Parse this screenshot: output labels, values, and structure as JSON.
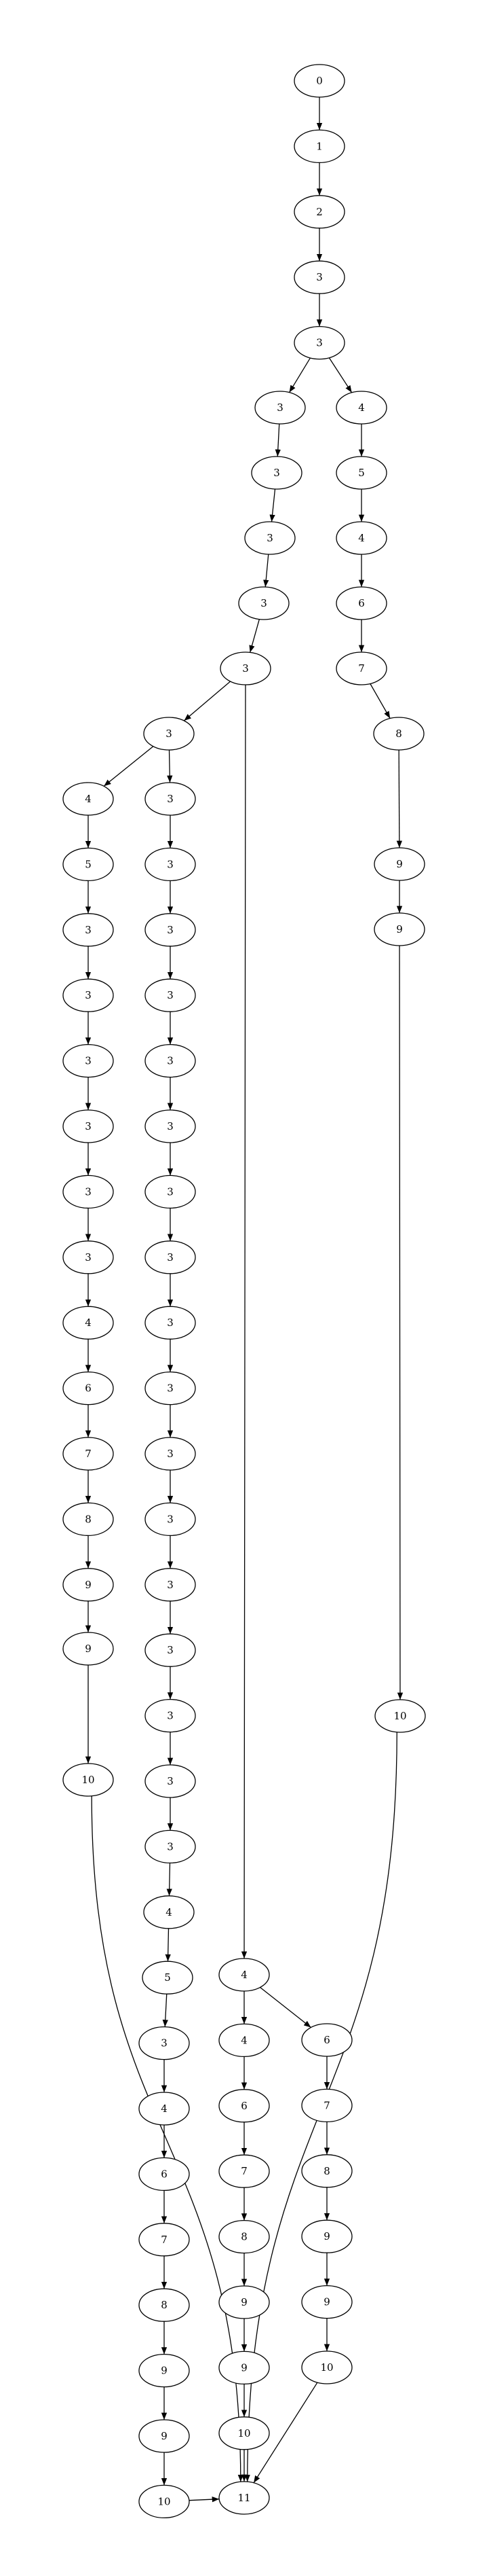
{
  "graph": {
    "nodes": [
      {
        "id": "n0",
        "label": "0"
      },
      {
        "id": "n1",
        "label": "1"
      },
      {
        "id": "n2",
        "label": "2"
      },
      {
        "id": "n3",
        "label": "3"
      },
      {
        "id": "n4",
        "label": "3"
      },
      {
        "id": "a1",
        "label": "3"
      },
      {
        "id": "a2",
        "label": "3"
      },
      {
        "id": "a3",
        "label": "3"
      },
      {
        "id": "a4",
        "label": "3"
      },
      {
        "id": "a5",
        "label": "3"
      },
      {
        "id": "b0",
        "label": "3"
      },
      {
        "id": "L1",
        "label": "4"
      },
      {
        "id": "L2",
        "label": "5"
      },
      {
        "id": "L3",
        "label": "3"
      },
      {
        "id": "L4",
        "label": "3"
      },
      {
        "id": "L5",
        "label": "3"
      },
      {
        "id": "L6",
        "label": "3"
      },
      {
        "id": "L7",
        "label": "3"
      },
      {
        "id": "L8",
        "label": "3"
      },
      {
        "id": "L9",
        "label": "4"
      },
      {
        "id": "L10",
        "label": "6"
      },
      {
        "id": "L11",
        "label": "7"
      },
      {
        "id": "L12",
        "label": "8"
      },
      {
        "id": "L13",
        "label": "9"
      },
      {
        "id": "L14",
        "label": "9"
      },
      {
        "id": "L15",
        "label": "10"
      },
      {
        "id": "M1",
        "label": "3"
      },
      {
        "id": "M2",
        "label": "3"
      },
      {
        "id": "M3",
        "label": "3"
      },
      {
        "id": "M4",
        "label": "3"
      },
      {
        "id": "M5",
        "label": "3"
      },
      {
        "id": "M6",
        "label": "3"
      },
      {
        "id": "M7",
        "label": "3"
      },
      {
        "id": "M8",
        "label": "3"
      },
      {
        "id": "M9",
        "label": "3"
      },
      {
        "id": "M10",
        "label": "3"
      },
      {
        "id": "M11",
        "label": "3"
      },
      {
        "id": "M12",
        "label": "3"
      },
      {
        "id": "M13",
        "label": "3"
      },
      {
        "id": "M14",
        "label": "3"
      },
      {
        "id": "M15",
        "label": "3"
      },
      {
        "id": "M16",
        "label": "3"
      },
      {
        "id": "M17",
        "label": "3"
      },
      {
        "id": "M18",
        "label": "4"
      },
      {
        "id": "M19",
        "label": "5"
      },
      {
        "id": "M20",
        "label": "3"
      },
      {
        "id": "M21",
        "label": "4"
      },
      {
        "id": "M22",
        "label": "6"
      },
      {
        "id": "M23",
        "label": "7"
      },
      {
        "id": "M24",
        "label": "8"
      },
      {
        "id": "M25",
        "label": "9"
      },
      {
        "id": "M26",
        "label": "9"
      },
      {
        "id": "M27",
        "label": "10"
      },
      {
        "id": "C0",
        "label": "4"
      },
      {
        "id": "C1",
        "label": "4"
      },
      {
        "id": "C2",
        "label": "6"
      },
      {
        "id": "C3",
        "label": "7"
      },
      {
        "id": "C4",
        "label": "8"
      },
      {
        "id": "C5",
        "label": "9"
      },
      {
        "id": "C6",
        "label": "9"
      },
      {
        "id": "C7",
        "label": "10"
      },
      {
        "id": "D1",
        "label": "6"
      },
      {
        "id": "D2",
        "label": "7"
      },
      {
        "id": "D3",
        "label": "8"
      },
      {
        "id": "D4",
        "label": "9"
      },
      {
        "id": "D5",
        "label": "9"
      },
      {
        "id": "D6",
        "label": "10"
      },
      {
        "id": "R1",
        "label": "4"
      },
      {
        "id": "R2",
        "label": "5"
      },
      {
        "id": "R3",
        "label": "4"
      },
      {
        "id": "R4",
        "label": "6"
      },
      {
        "id": "R5",
        "label": "7"
      },
      {
        "id": "R6",
        "label": "8"
      },
      {
        "id": "R7",
        "label": "9"
      },
      {
        "id": "R8",
        "label": "9"
      },
      {
        "id": "R9",
        "label": "10"
      },
      {
        "id": "end",
        "label": "11"
      }
    ],
    "edges": [
      [
        "n0",
        "n1"
      ],
      [
        "n1",
        "n2"
      ],
      [
        "n2",
        "n3"
      ],
      [
        "n3",
        "n4"
      ],
      [
        "n4",
        "a1"
      ],
      [
        "n4",
        "R1"
      ],
      [
        "a1",
        "a2"
      ],
      [
        "a2",
        "a3"
      ],
      [
        "a3",
        "a4"
      ],
      [
        "a4",
        "a5"
      ],
      [
        "a5",
        "b0"
      ],
      [
        "a5",
        "C0"
      ],
      [
        "b0",
        "L1"
      ],
      [
        "b0",
        "M1"
      ],
      [
        "L1",
        "L2"
      ],
      [
        "L2",
        "L3"
      ],
      [
        "L3",
        "L4"
      ],
      [
        "L4",
        "L5"
      ],
      [
        "L5",
        "L6"
      ],
      [
        "L6",
        "L7"
      ],
      [
        "L7",
        "L8"
      ],
      [
        "L8",
        "L9"
      ],
      [
        "L9",
        "L10"
      ],
      [
        "L10",
        "L11"
      ],
      [
        "L11",
        "L12"
      ],
      [
        "L12",
        "L13"
      ],
      [
        "L13",
        "L14"
      ],
      [
        "L14",
        "L15"
      ],
      [
        "L15",
        "end"
      ],
      [
        "M1",
        "M2"
      ],
      [
        "M2",
        "M3"
      ],
      [
        "M3",
        "M4"
      ],
      [
        "M4",
        "M5"
      ],
      [
        "M5",
        "M6"
      ],
      [
        "M6",
        "M7"
      ],
      [
        "M7",
        "M8"
      ],
      [
        "M8",
        "M9"
      ],
      [
        "M9",
        "M10"
      ],
      [
        "M10",
        "M11"
      ],
      [
        "M11",
        "M12"
      ],
      [
        "M12",
        "M13"
      ],
      [
        "M13",
        "M14"
      ],
      [
        "M14",
        "M15"
      ],
      [
        "M15",
        "M16"
      ],
      [
        "M16",
        "M17"
      ],
      [
        "M17",
        "M18"
      ],
      [
        "M18",
        "M19"
      ],
      [
        "M19",
        "M20"
      ],
      [
        "M20",
        "M21"
      ],
      [
        "M21",
        "M22"
      ],
      [
        "M22",
        "M23"
      ],
      [
        "M23",
        "M24"
      ],
      [
        "M24",
        "M25"
      ],
      [
        "M25",
        "M26"
      ],
      [
        "M26",
        "M27"
      ],
      [
        "M27",
        "end"
      ],
      [
        "C0",
        "C1"
      ],
      [
        "C0",
        "D1"
      ],
      [
        "C1",
        "C2"
      ],
      [
        "C2",
        "C3"
      ],
      [
        "C3",
        "C4"
      ],
      [
        "C4",
        "C5"
      ],
      [
        "C5",
        "C6"
      ],
      [
        "C6",
        "C7"
      ],
      [
        "C7",
        "end"
      ],
      [
        "D1",
        "D2"
      ],
      [
        "D2",
        "D3"
      ],
      [
        "D3",
        "D4"
      ],
      [
        "D4",
        "D5"
      ],
      [
        "D5",
        "D6"
      ],
      [
        "D6",
        "end"
      ],
      [
        "R1",
        "R2"
      ],
      [
        "R2",
        "R3"
      ],
      [
        "R3",
        "R4"
      ],
      [
        "R4",
        "R5"
      ],
      [
        "R5",
        "R6"
      ],
      [
        "R6",
        "R7"
      ],
      [
        "R7",
        "R8"
      ],
      [
        "R8",
        "R9"
      ],
      [
        "R9",
        "end"
      ]
    ]
  }
}
